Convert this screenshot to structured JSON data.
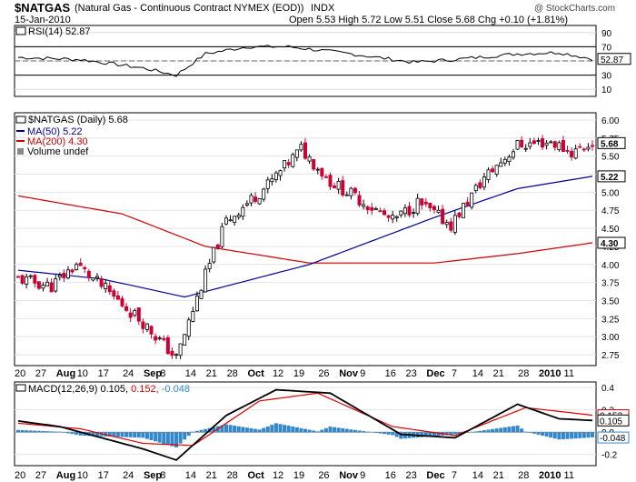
{
  "header": {
    "symbol": "$NATGAS",
    "name": "(Natural Gas - Continuous Contract NYMEX (EOD))",
    "exchange": "INDX",
    "watermark": "@ StockCharts.com",
    "date": "15-Jan-2010",
    "quote": "Open 5.53  High 5.72  Low 5.51  Close 5.68  Chg +0.10 (+1.81%)"
  },
  "rsi": {
    "label": "RSI(14) 52.87",
    "last_label": "52.87",
    "ticks": [
      90,
      70,
      50,
      30,
      10
    ],
    "overbought": 70,
    "oversold": 30,
    "color": "#000000"
  },
  "price": {
    "legend_price": "$NATGAS (Daily) 5.68",
    "legend_ma50": "MA(50) 5.22",
    "legend_ma200": "MA(200) 4.30",
    "legend_volume": "Volume undef",
    "last_label": "5.68",
    "ma50_label": "5.22",
    "ma200_label": "4.30",
    "ticks": [
      "6.00",
      "5.75",
      "5.50",
      "5.25",
      "5.00",
      "4.75",
      "4.50",
      "4.25",
      "4.00",
      "3.75",
      "3.50",
      "3.25",
      "3.00",
      "2.75"
    ],
    "up_color": "#000000",
    "down_color": "#cc0033",
    "ma50_color": "#000099",
    "ma200_color": "#cc0000"
  },
  "macd": {
    "label_prefix": "MACD(12,26,9) 0.105,",
    "label_signal": "0.152,",
    "label_hist": "-0.048",
    "ticks": [
      "0.4",
      "0.2",
      "0.0",
      "-0.2"
    ],
    "last_macd": "0.105",
    "last_signal": "0.152",
    "last_hist": "-0.048",
    "macd_color": "#000000",
    "signal_color": "#dd0000",
    "hist_color": "#3388cc"
  },
  "xaxis_labels": [
    "20",
    "27",
    "Aug",
    "10",
    "17",
    "24",
    "Sep",
    "8",
    "14",
    "21",
    "28",
    "Oct",
    "12",
    "19",
    "26",
    "Nov",
    "9",
    "16",
    "23",
    "Dec",
    "7",
    "14",
    "21",
    "28",
    "2010",
    "11"
  ],
  "chart_data": {
    "type": "candlestick",
    "x_range": [
      "2009-07-20",
      "2010-01-15"
    ],
    "price_ylim": [
      2.6,
      6.1
    ],
    "series": [
      {
        "name": "$NATGAS (Daily)",
        "anchors": [
          [
            0,
            3.8
          ],
          [
            8,
            3.7
          ],
          [
            14,
            4.0
          ],
          [
            22,
            3.6
          ],
          [
            30,
            3.2
          ],
          [
            38,
            2.7
          ],
          [
            44,
            3.7
          ],
          [
            50,
            4.6
          ],
          [
            60,
            5.1
          ],
          [
            68,
            5.6
          ],
          [
            75,
            5.15
          ],
          [
            82,
            4.9
          ],
          [
            90,
            4.6
          ],
          [
            96,
            4.85
          ],
          [
            104,
            4.55
          ],
          [
            112,
            5.2
          ],
          [
            120,
            5.65
          ],
          [
            128,
            5.7
          ],
          [
            133,
            5.55
          ],
          [
            138,
            5.68
          ]
        ]
      },
      {
        "name": "MA(50)",
        "anchors": [
          [
            0,
            3.92
          ],
          [
            20,
            3.8
          ],
          [
            40,
            3.55
          ],
          [
            70,
            4.0
          ],
          [
            100,
            4.65
          ],
          [
            120,
            5.05
          ],
          [
            138,
            5.22
          ]
        ]
      },
      {
        "name": "MA(200)",
        "anchors": [
          [
            0,
            4.95
          ],
          [
            25,
            4.7
          ],
          [
            45,
            4.25
          ],
          [
            70,
            4.02
          ],
          [
            100,
            4.02
          ],
          [
            120,
            4.15
          ],
          [
            138,
            4.3
          ]
        ]
      },
      {
        "name": "RSI(14)",
        "anchors": [
          [
            0,
            55
          ],
          [
            15,
            52
          ],
          [
            30,
            40
          ],
          [
            38,
            30
          ],
          [
            45,
            60
          ],
          [
            55,
            70
          ],
          [
            65,
            70
          ],
          [
            80,
            60
          ],
          [
            95,
            48
          ],
          [
            105,
            52
          ],
          [
            120,
            60
          ],
          [
            130,
            62
          ],
          [
            138,
            52.87
          ]
        ]
      },
      {
        "name": "MACD",
        "anchors": [
          [
            0,
            0.1
          ],
          [
            10,
            0.05
          ],
          [
            20,
            -0.05
          ],
          [
            30,
            -0.15
          ],
          [
            38,
            -0.25
          ],
          [
            50,
            0.15
          ],
          [
            62,
            0.38
          ],
          [
            75,
            0.35
          ],
          [
            92,
            -0.02
          ],
          [
            105,
            -0.05
          ],
          [
            120,
            0.25
          ],
          [
            130,
            0.12
          ],
          [
            138,
            0.105
          ]
        ]
      },
      {
        "name": "Signal",
        "anchors": [
          [
            0,
            0.08
          ],
          [
            15,
            0.03
          ],
          [
            30,
            -0.1
          ],
          [
            42,
            -0.12
          ],
          [
            58,
            0.28
          ],
          [
            72,
            0.35
          ],
          [
            90,
            0.05
          ],
          [
            105,
            -0.03
          ],
          [
            122,
            0.22
          ],
          [
            138,
            0.152
          ]
        ]
      }
    ]
  }
}
